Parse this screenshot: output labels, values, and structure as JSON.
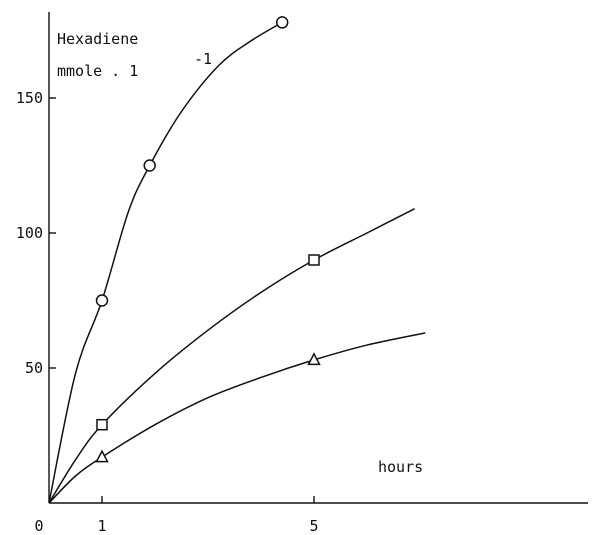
{
  "chart_data": {
    "type": "scatter",
    "title": "",
    "ylabel": "Hexadiene",
    "ylabel_unit": "mmole . 1",
    "ylabel_unit_exponent": "-1",
    "xlabel": "hours",
    "xlim": [
      0,
      10.3
    ],
    "ylim": [
      0,
      180
    ],
    "x_ticks": [
      0,
      1,
      5
    ],
    "x_tick_labels": [
      "0",
      "1",
      "5"
    ],
    "y_ticks": [
      50,
      100,
      150
    ],
    "y_tick_labels": [
      "50",
      "100",
      "150"
    ],
    "grid": false,
    "series": [
      {
        "marker": "circle",
        "points": [
          {
            "x": 1,
            "y": 75
          },
          {
            "x": 1.9,
            "y": 125
          },
          {
            "x": 4.4,
            "y": 178
          }
        ],
        "curve": [
          [
            0,
            0
          ],
          [
            0.5,
            48
          ],
          [
            1,
            75
          ],
          [
            1.5,
            108
          ],
          [
            1.9,
            125
          ],
          [
            2.5,
            145
          ],
          [
            3.2,
            162
          ],
          [
            3.8,
            171
          ],
          [
            4.4,
            178
          ]
        ]
      },
      {
        "marker": "square",
        "points": [
          {
            "x": 1,
            "y": 29
          },
          {
            "x": 5,
            "y": 90
          }
        ],
        "curve": [
          [
            0,
            0
          ],
          [
            0.5,
            16
          ],
          [
            1,
            29
          ],
          [
            2,
            48
          ],
          [
            3,
            64
          ],
          [
            4,
            78
          ],
          [
            5,
            90
          ],
          [
            6,
            100
          ],
          [
            6.9,
            109
          ]
        ]
      },
      {
        "marker": "triangle",
        "points": [
          {
            "x": 1,
            "y": 17
          },
          {
            "x": 5,
            "y": 53
          }
        ],
        "curve": [
          [
            0,
            0
          ],
          [
            0.5,
            10
          ],
          [
            1,
            17
          ],
          [
            2,
            29
          ],
          [
            3,
            39
          ],
          [
            4,
            46.5
          ],
          [
            5,
            53
          ],
          [
            6,
            58.5
          ],
          [
            7.1,
            63
          ]
        ]
      }
    ]
  }
}
